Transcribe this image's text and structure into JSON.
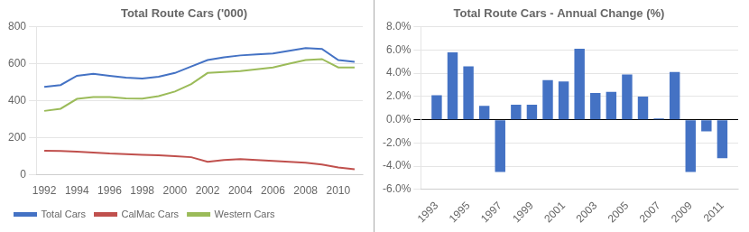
{
  "chart_data": [
    {
      "type": "line",
      "title": "Total Route Cars ('000)",
      "x": [
        1992,
        1993,
        1994,
        1995,
        1996,
        1997,
        1998,
        1999,
        2000,
        2001,
        2002,
        2003,
        2004,
        2005,
        2006,
        2007,
        2008,
        2009,
        2010,
        2011
      ],
      "xlim": [
        1991.5,
        2011.5
      ],
      "xticks": [
        1992,
        1994,
        1996,
        1998,
        2000,
        2002,
        2004,
        2006,
        2008,
        2010
      ],
      "ylim": [
        0,
        800
      ],
      "yticks": [
        0,
        200,
        400,
        600,
        800
      ],
      "series": [
        {
          "name": "Total Cars",
          "color": "#4472C4",
          "values": [
            475,
            485,
            535,
            545,
            535,
            525,
            520,
            530,
            550,
            585,
            620,
            635,
            645,
            650,
            655,
            670,
            685,
            680,
            620,
            610
          ]
        },
        {
          "name": "CalMac Cars",
          "color": "#C0504D",
          "values": [
            130,
            128,
            125,
            120,
            115,
            112,
            108,
            105,
            100,
            95,
            70,
            80,
            85,
            80,
            75,
            70,
            65,
            55,
            40,
            30
          ]
        },
        {
          "name": "Western Cars",
          "color": "#9BBB59",
          "values": [
            345,
            357,
            410,
            420,
            420,
            413,
            412,
            425,
            450,
            490,
            550,
            555,
            560,
            570,
            580,
            600,
            620,
            625,
            580,
            580
          ]
        }
      ],
      "grid": true,
      "legend": "lower left"
    },
    {
      "type": "bar",
      "title": "Total Route Cars - Annual Change (%)",
      "x": [
        1993,
        1994,
        1995,
        1996,
        1997,
        1998,
        1999,
        2000,
        2001,
        2002,
        2003,
        2004,
        2005,
        2006,
        2007,
        2008,
        2009,
        2010,
        2011
      ],
      "values": [
        0.021,
        0.058,
        0.046,
        0.012,
        -0.045,
        0.013,
        0.013,
        0.034,
        0.033,
        0.061,
        0.023,
        0.024,
        0.039,
        0.02,
        0.001,
        0.041,
        -0.045,
        -0.01,
        -0.033
      ],
      "color": "#4472C4",
      "xlim": [
        1992,
        2012
      ],
      "xticks": [
        1993,
        1995,
        1997,
        1999,
        2001,
        2003,
        2005,
        2007,
        2009,
        2011
      ],
      "ylim": [
        -0.06,
        0.08
      ],
      "yticks": [
        {
          "value": -0.06,
          "label": "-6.0%"
        },
        {
          "value": -0.04,
          "label": "-4.0%"
        },
        {
          "value": -0.02,
          "label": "-2.0%"
        },
        {
          "value": 0.0,
          "label": "0.0%"
        },
        {
          "value": 0.02,
          "label": "2.0%"
        },
        {
          "value": 0.04,
          "label": "4.0%"
        },
        {
          "value": 0.06,
          "label": "6.0%"
        },
        {
          "value": 0.08,
          "label": "8.0%"
        }
      ],
      "grid": true
    }
  ]
}
